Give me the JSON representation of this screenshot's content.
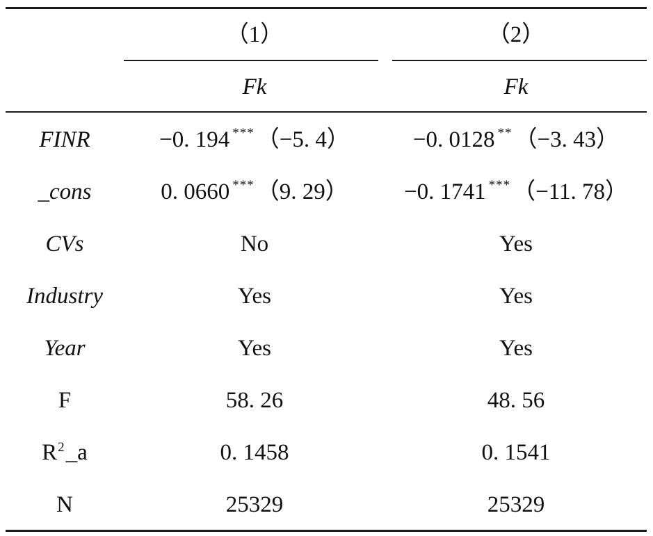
{
  "header": {
    "col1_number": "（1）",
    "col2_number": "（2）",
    "col1_dep_var": "Fk",
    "col2_dep_var": "Fk"
  },
  "rows": [
    {
      "label": "FINR",
      "col1": {
        "coef": "−0. 194",
        "stars": "***",
        "t": "（−5. 4）"
      },
      "col2": {
        "coef": "−0. 0128",
        "stars": "**",
        "t": "（−3. 43）"
      }
    },
    {
      "label": "_cons",
      "col1": {
        "coef": "0. 0660",
        "stars": "***",
        "t": "（9. 29）"
      },
      "col2": {
        "coef": "−0. 1741",
        "stars": "***",
        "t": "（−11. 78）"
      }
    },
    {
      "label": "CVs",
      "col1": "No",
      "col2": "Yes"
    },
    {
      "label": "Industry",
      "col1": "Yes",
      "col2": "Yes"
    },
    {
      "label": "Year",
      "col1": "Yes",
      "col2": "Yes"
    },
    {
      "label": "F",
      "col1": "58. 26",
      "col2": "48. 56"
    },
    {
      "label_main": "R",
      "label_sup": "2",
      "label_rest": "_a",
      "col1": "0. 1458",
      "col2": "0. 1541"
    },
    {
      "label": "N",
      "col1": "25329",
      "col2": "25329"
    }
  ]
}
